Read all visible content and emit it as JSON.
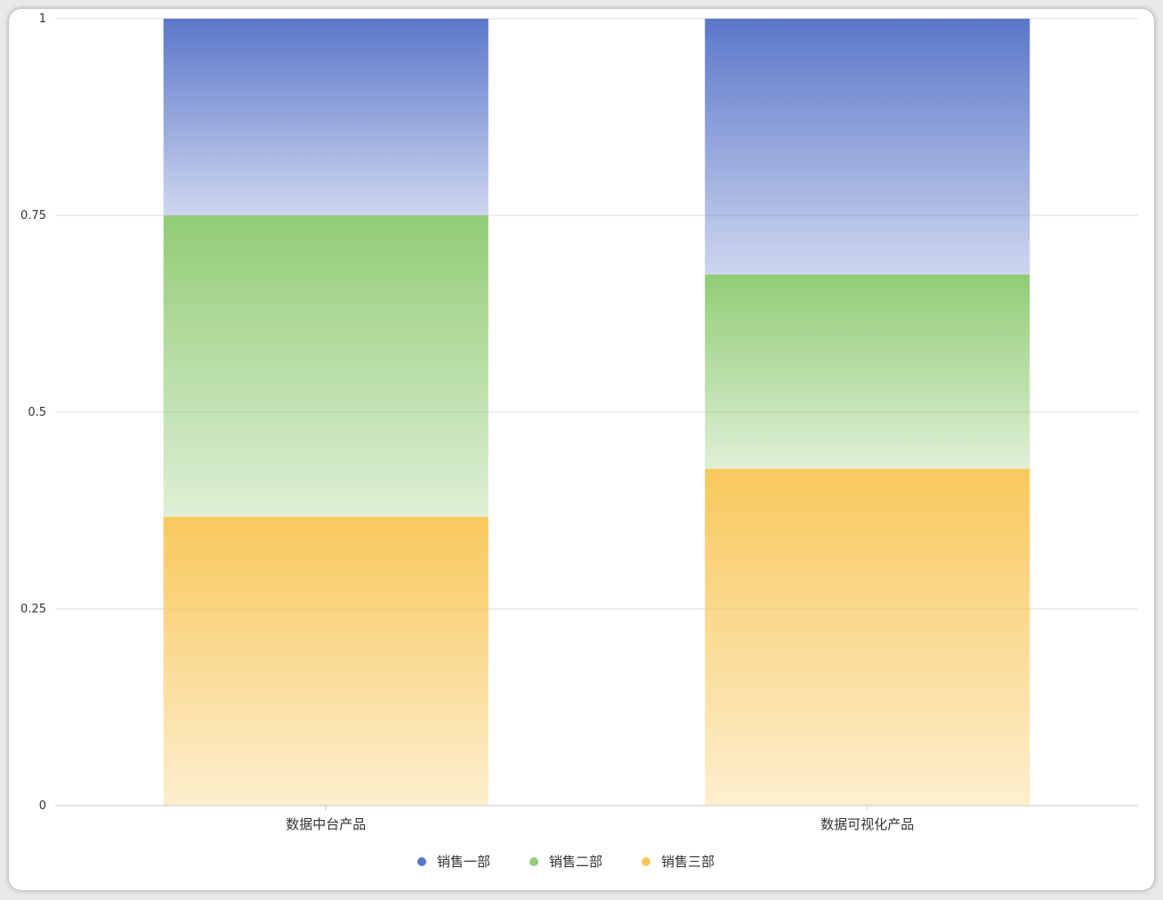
{
  "chart_data": {
    "type": "bar",
    "stacked": true,
    "categories": [
      "数据中台产品",
      "数据可视化产品"
    ],
    "series": [
      {
        "name": "销售三部",
        "values": [
          0.367,
          0.428
        ],
        "color": "#f8c85c"
      },
      {
        "name": "销售二部",
        "values": [
          0.383,
          0.247
        ],
        "color": "#92cc76"
      },
      {
        "name": "销售一部",
        "values": [
          0.25,
          0.325
        ],
        "color": "#5b77c9"
      }
    ],
    "legend_order": [
      "销售一部",
      "销售二部",
      "销售三部"
    ],
    "yticks": [
      "0",
      "0.25",
      "0.5",
      "0.75",
      "1"
    ],
    "ylim": [
      0,
      1
    ],
    "grid": true,
    "legend_position": "bottom"
  }
}
